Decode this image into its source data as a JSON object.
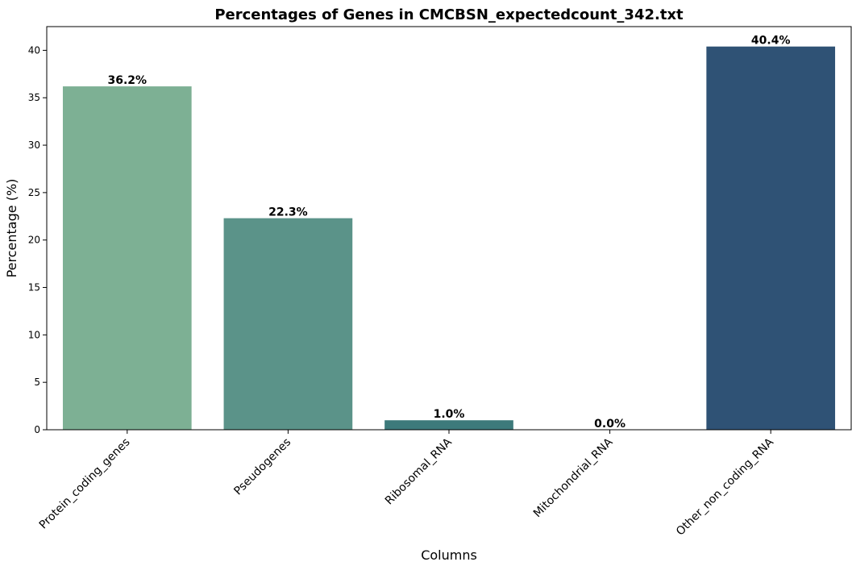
{
  "chart_data": {
    "type": "bar",
    "title": "Percentages of Genes in CMCBSN_expectedcount_342.txt",
    "xlabel": "Columns",
    "ylabel": "Percentage (%)",
    "categories": [
      "Protein_coding_genes",
      "Pseudogenes",
      "Ribosomal_RNA",
      "Mitochondrial_RNA",
      "Other_non_coding_RNA"
    ],
    "values": [
      36.2,
      22.3,
      1.0,
      0.0,
      40.4
    ],
    "value_labels": [
      "36.2%",
      "22.3%",
      "1.0%",
      "0.0%",
      "40.4%"
    ],
    "colors": [
      "#7db094",
      "#5b9389",
      "#3d7a7b",
      "#3a6577",
      "#2f5275"
    ],
    "ylim": [
      0,
      42.5
    ],
    "yticks": [
      0,
      5,
      10,
      15,
      20,
      25,
      30,
      35,
      40
    ],
    "ytick_labels": [
      "0",
      "5",
      "10",
      "15",
      "20",
      "25",
      "30",
      "35",
      "40"
    ],
    "xtick_rotation": -45,
    "grid": false,
    "legend": "none"
  }
}
